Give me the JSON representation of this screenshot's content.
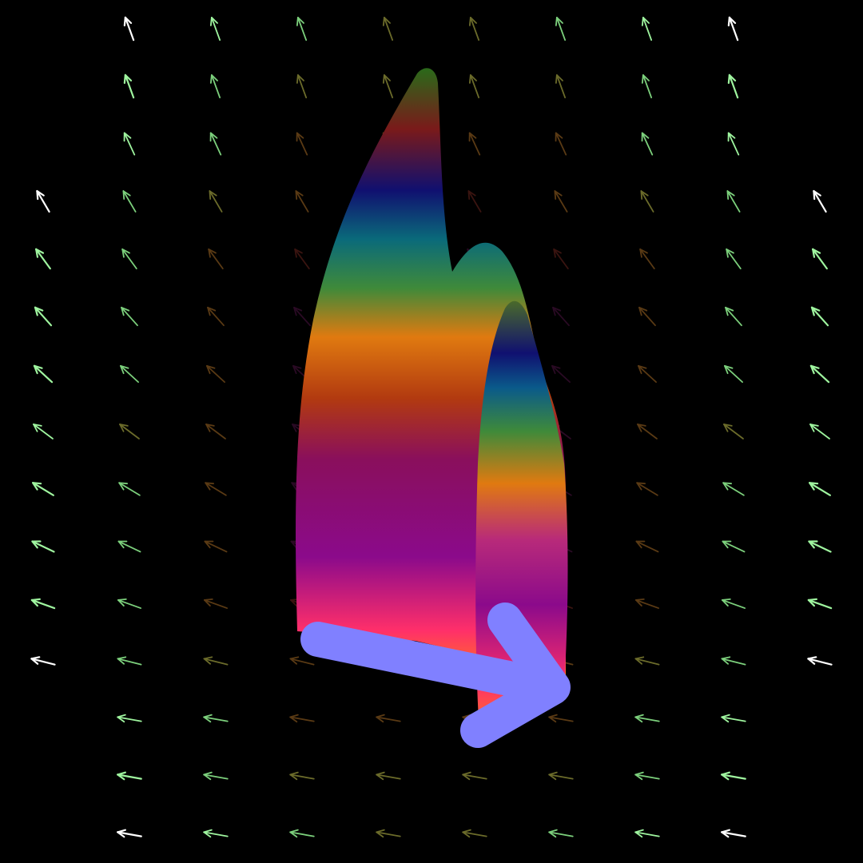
{
  "scene": {
    "background_color": "#000000",
    "vector_field": {
      "style": "arrows",
      "direction": "up-left",
      "palette": [
        "#ffffff",
        "#9ff59f",
        "#7cd07c",
        "#6b6b2a",
        "#5a3a14",
        "#3a1410",
        "#2a0a24",
        "#10104a"
      ]
    },
    "flame_shape": {
      "icon": "flame-icon",
      "gradient_colors": [
        "#ff7a1a",
        "#ff2f6a",
        "#8b0a8b",
        "#8a0f5c",
        "#b23a10",
        "#e07a10",
        "#3f8a3a",
        "#0a6a7a",
        "#101070",
        "#7a1a1a",
        "#2a6a1a"
      ]
    },
    "big_arrow": {
      "icon": "arrow-right-icon",
      "color": "#8080ff"
    }
  }
}
